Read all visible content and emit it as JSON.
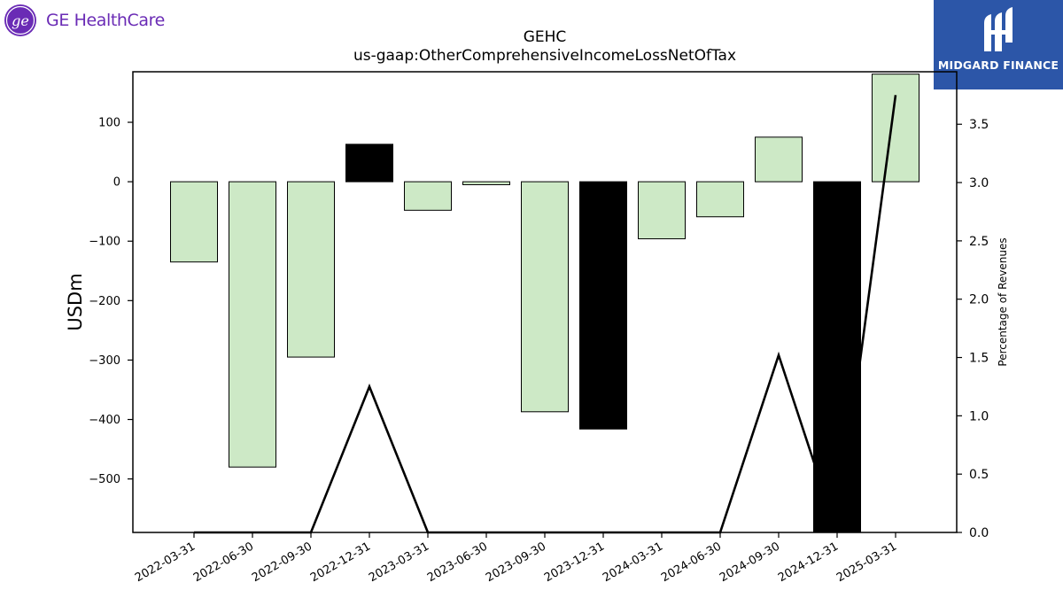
{
  "logos": {
    "company_name": "GE HealthCare",
    "company_icon": "ge-monogram-icon",
    "publisher_name": "MIDGARD FINANCE",
    "publisher_icon": "midgard-mark-icon"
  },
  "colors": {
    "positive_bar": "#cde9c6",
    "highlight_bar": "#000000",
    "line": "#000000",
    "ge_purple": "#6a2bb5",
    "midgard_blue": "#2c56a8"
  },
  "chart_data": {
    "type": "bar",
    "title": "GEHC",
    "subtitle": "us-gaap:OtherComprehensiveIncomeLossNetOfTax",
    "ylabel": "USDm",
    "y2label": "Percentage of Revenues",
    "categories": [
      "2022-03-31",
      "2022-06-30",
      "2022-09-30",
      "2022-12-31",
      "2023-03-31",
      "2023-06-30",
      "2023-09-30",
      "2023-12-31",
      "2024-03-31",
      "2024-06-30",
      "2024-09-30",
      "2024-12-31",
      "2025-03-31"
    ],
    "series": [
      {
        "type": "bar",
        "axis": "left",
        "values": [
          -135,
          -480,
          -295,
          63,
          -48,
          -5,
          -387,
          -416,
          -96,
          -59,
          75,
          -590,
          181
        ],
        "colors": [
          "#cde9c6",
          "#cde9c6",
          "#cde9c6",
          "#000000",
          "#cde9c6",
          "#cde9c6",
          "#cde9c6",
          "#000000",
          "#cde9c6",
          "#cde9c6",
          "#cde9c6",
          "#000000",
          "#cde9c6"
        ]
      },
      {
        "type": "line",
        "axis": "right",
        "values": [
          0,
          0,
          0,
          1.25,
          0,
          0,
          0,
          0,
          0,
          0,
          1.52,
          0,
          3.75
        ]
      }
    ],
    "ylim": [
      -590,
      185
    ],
    "yticks": [
      -500,
      -400,
      -300,
      -200,
      -100,
      0,
      100
    ],
    "y2lim": [
      0,
      3.95
    ],
    "y2ticks": [
      0.0,
      0.5,
      1.0,
      1.5,
      2.0,
      2.5,
      3.0,
      3.5
    ],
    "grid": false,
    "legend": "none"
  }
}
